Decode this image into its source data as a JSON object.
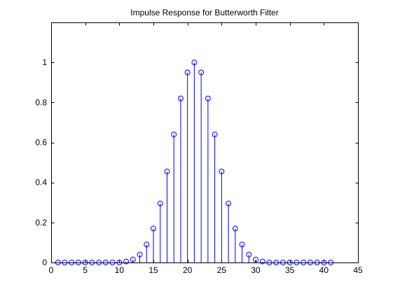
{
  "chart_data": {
    "type": "stem",
    "title": "Impulse Response for Butterworth Filter",
    "xlabel": "",
    "ylabel": "",
    "xlim": [
      0,
      45
    ],
    "ylim": [
      0,
      1.2
    ],
    "xticks": [
      0,
      5,
      10,
      15,
      20,
      25,
      30,
      35,
      40,
      45
    ],
    "yticks": [
      0,
      0.2,
      0.4,
      0.6,
      0.8,
      1
    ],
    "xtick_labels": [
      "0",
      "5",
      "10",
      "15",
      "20",
      "25",
      "30",
      "35",
      "40",
      "45"
    ],
    "ytick_labels": [
      "0",
      "0.2",
      "0.4",
      "0.6",
      "0.8",
      "1"
    ],
    "grid": false,
    "legend": "none",
    "series": [
      {
        "color": "#0000ff",
        "marker": "circle",
        "x": [
          1,
          2,
          3,
          4,
          5,
          6,
          7,
          8,
          9,
          10,
          11,
          12,
          13,
          14,
          15,
          16,
          17,
          18,
          19,
          20,
          21,
          22,
          23,
          24,
          25,
          26,
          27,
          28,
          29,
          30,
          31,
          32,
          33,
          34,
          35,
          36,
          37,
          38,
          39,
          40,
          41
        ],
        "y": [
          0,
          0,
          0,
          0,
          0,
          0,
          0,
          0,
          0,
          0,
          0.005,
          0.015,
          0.04,
          0.09,
          0.17,
          0.295,
          0.455,
          0.64,
          0.82,
          0.95,
          1.0,
          0.95,
          0.82,
          0.64,
          0.455,
          0.295,
          0.17,
          0.09,
          0.04,
          0.015,
          0.005,
          0,
          0,
          0,
          0,
          0,
          0,
          0,
          0,
          0,
          0
        ]
      }
    ]
  }
}
